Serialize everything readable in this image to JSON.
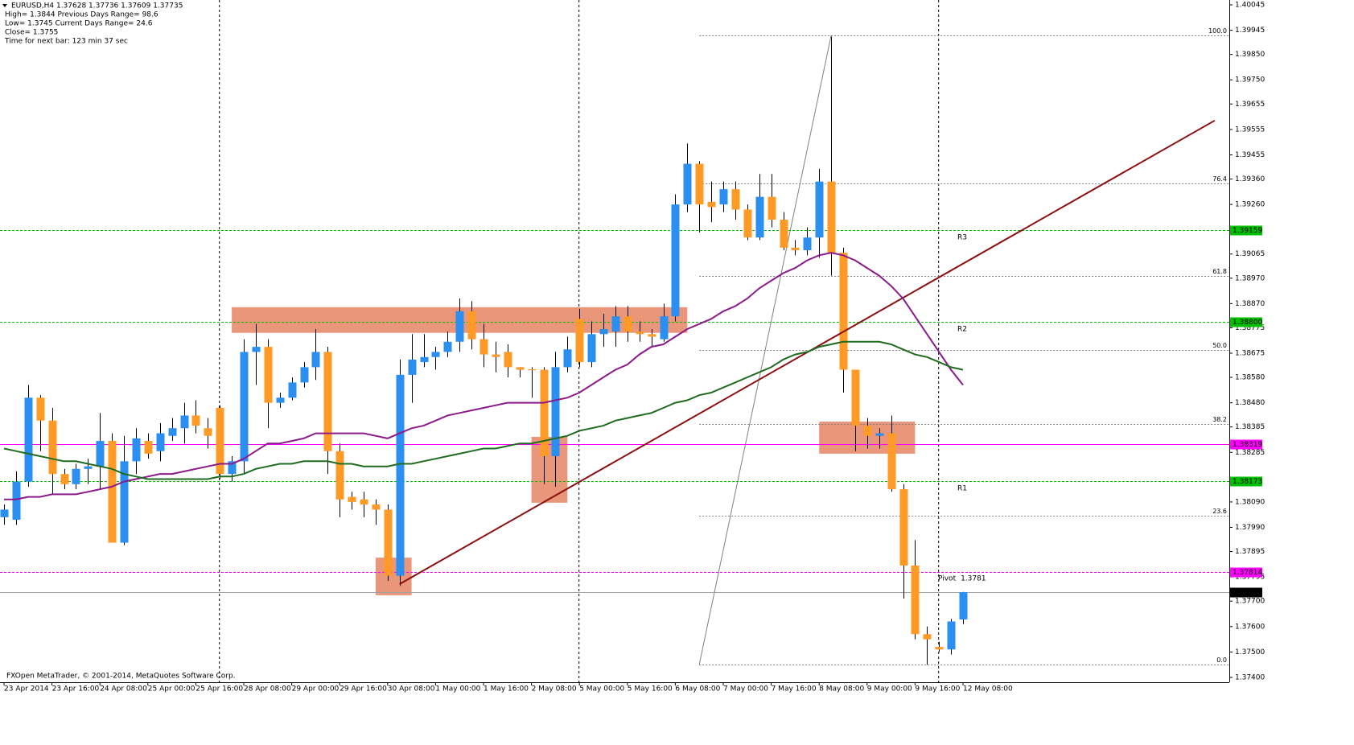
{
  "chart_data": {
    "type": "candlestick",
    "info_lines": [
      "EURUSD,H4  1.37628 1.37736 1.37609 1.37735",
      "High= 1.3844    Previous Days Range= 98.6",
      "Low= 1.3745    Current Days Range= 24.6",
      "Close= 1.3755",
      "Time for next bar: 123 min 37 sec"
    ],
    "footer": "FXOpen MetaTrader, © 2001-2014, MetaQuotes Software Corp.",
    "categories": [
      "23 Apr 2014",
      null,
      null,
      null,
      "23 Apr 16:00",
      null,
      null,
      null,
      "24 Apr 08:00",
      null,
      null,
      null,
      "25 Apr 00:00",
      null,
      null,
      null,
      "25 Apr 16:00",
      null,
      null,
      null,
      "28 Apr 08:00",
      null,
      null,
      null,
      "29 Apr 00:00",
      null,
      null,
      null,
      "29 Apr 16:00",
      null,
      null,
      null,
      "30 Apr 08:00",
      null,
      null,
      null,
      "1 May 00:00",
      null,
      null,
      null,
      "1 May 16:00",
      null,
      null,
      null,
      "2 May 08:00",
      null,
      null,
      null,
      "5 May 00:00",
      null,
      null,
      null,
      "5 May 16:00",
      null,
      null,
      null,
      "6 May 08:00",
      null,
      null,
      null,
      "7 May 00:00",
      null,
      null,
      null,
      "7 May 16:00",
      null,
      null,
      null,
      "8 May 08:00",
      null,
      null,
      null,
      "9 May 00:00",
      null,
      null,
      null,
      "9 May 16:00",
      null,
      null,
      null,
      "12 May 08:00"
    ],
    "open": [
      1.3803,
      1.3802,
      1.3817,
      1.385,
      1.3841,
      1.382,
      1.3816,
      1.3822,
      1.3823,
      1.3833,
      1.3793,
      1.3825,
      1.3833,
      1.3829,
      1.3835,
      1.3838,
      1.3843,
      1.3838,
      1.3846,
      1.382,
      1.3825,
      1.3868,
      1.387,
      1.3848,
      1.385,
      1.3856,
      1.3862,
      1.3868,
      1.3829,
      1.3811,
      1.381,
      1.3808,
      1.3806,
      1.378,
      1.3859,
      1.3864,
      1.3866,
      1.3868,
      1.3872,
      1.3884,
      1.3873,
      1.3867,
      1.3868,
      1.3862,
      1.38612,
      1.3861,
      1.3827,
      1.3862,
      1.3881,
      1.3864,
      1.3875,
      1.3876,
      1.3882,
      1.3876,
      1.3875,
      1.3873,
      1.3882,
      1.3926,
      1.3942,
      1.3927,
      1.3926,
      1.3932,
      1.3924,
      1.3913,
      1.3929,
      1.392,
      1.3909,
      1.3908,
      1.3913,
      1.3935,
      1.3907,
      1.3861,
      1.3839,
      1.3835,
      1.3836,
      1.3814,
      1.3784,
      1.3757,
      1.3752,
      1.3751,
      1.37628
    ],
    "high": [
      1.3808,
      1.3821,
      1.3855,
      1.3851,
      1.3846,
      1.3822,
      1.3824,
      1.3826,
      1.3844,
      1.3836,
      1.3835,
      1.3838,
      1.3836,
      1.384,
      1.3842,
      1.3848,
      1.3849,
      1.3842,
      1.3847,
      1.3827,
      1.3873,
      1.3879,
      1.3873,
      1.3852,
      1.3858,
      1.3864,
      1.3877,
      1.387,
      1.3832,
      1.3813,
      1.3813,
      1.381,
      1.3808,
      1.3865,
      1.3875,
      1.3875,
      1.387,
      1.3876,
      1.3889,
      1.3888,
      1.3879,
      1.3872,
      1.3871,
      1.3862,
      1.3862,
      1.3862,
      1.3868,
      1.3874,
      1.3885,
      1.388,
      1.3883,
      1.3886,
      1.3886,
      1.388,
      1.3877,
      1.3887,
      1.393,
      1.395,
      1.3943,
      1.3935,
      1.3935,
      1.3935,
      1.3926,
      1.3938,
      1.3938,
      1.3923,
      1.3912,
      1.3917,
      1.394,
      1.3992,
      1.3909,
      1.3861,
      1.3842,
      1.3838,
      1.3843,
      1.3816,
      1.3794,
      1.376,
      1.3754,
      1.3763,
      1.37736
    ],
    "low": [
      1.38,
      1.38,
      1.3815,
      1.3829,
      1.3812,
      1.3814,
      1.3814,
      1.3816,
      1.3814,
      1.3793,
      1.3792,
      1.382,
      1.3826,
      1.3825,
      1.3833,
      1.3832,
      1.3836,
      1.383,
      1.3818,
      1.3817,
      1.382,
      1.3855,
      1.3838,
      1.3846,
      1.3849,
      1.3854,
      1.3857,
      1.382,
      1.3803,
      1.3806,
      1.3803,
      1.38,
      1.3778,
      1.3776,
      1.3848,
      1.3862,
      1.3861,
      1.3866,
      1.3868,
      1.3869,
      1.3862,
      1.386,
      1.3858,
      1.3858,
      1.385,
      1.3816,
      1.3815,
      1.386,
      1.3862,
      1.3862,
      1.387,
      1.387,
      1.3872,
      1.3872,
      1.387,
      1.3872,
      1.388,
      1.3923,
      1.3915,
      1.3919,
      1.3923,
      1.392,
      1.3912,
      1.3912,
      1.3917,
      1.3908,
      1.3906,
      1.3906,
      1.3905,
      1.3898,
      1.3852,
      1.3829,
      1.383,
      1.383,
      1.3813,
      1.3771,
      1.3755,
      1.3745,
      1.375,
      1.3749,
      1.37609
    ],
    "close": [
      1.3806,
      1.3817,
      1.385,
      1.3841,
      1.382,
      1.3816,
      1.3822,
      1.3823,
      1.3833,
      1.3793,
      1.3825,
      1.3834,
      1.3828,
      1.3836,
      1.3838,
      1.3843,
      1.3839,
      1.3835,
      1.382,
      1.3825,
      1.3868,
      1.387,
      1.3848,
      1.385,
      1.3856,
      1.3862,
      1.3868,
      1.3829,
      1.381,
      1.3809,
      1.3808,
      1.3806,
      1.378,
      1.3859,
      1.3865,
      1.3866,
      1.3868,
      1.3872,
      1.3884,
      1.3873,
      1.3867,
      1.3866,
      1.3862,
      1.3861,
      1.38608,
      1.3827,
      1.3862,
      1.3869,
      1.3864,
      1.3875,
      1.3877,
      1.3882,
      1.3876,
      1.3875,
      1.3874,
      1.3882,
      1.3926,
      1.3942,
      1.3926,
      1.3925,
      1.3932,
      1.3924,
      1.3913,
      1.3929,
      1.392,
      1.3909,
      1.3908,
      1.3913,
      1.3935,
      1.3907,
      1.3861,
      1.3839,
      1.3835,
      1.3836,
      1.3814,
      1.3784,
      1.3757,
      1.3755,
      1.3751,
      1.3762,
      1.37735
    ],
    "up_color": "#2a8ff0",
    "down_color": "#ff9a26",
    "wick_color": "#000000",
    "overlays": [
      {
        "color": "#8b1a8b",
        "values": [
          1.381,
          1.381,
          1.3811,
          1.3811,
          1.3812,
          1.3812,
          1.3812,
          1.3813,
          1.3814,
          1.3815,
          1.3817,
          1.3818,
          1.3819,
          1.382,
          1.382,
          1.3821,
          1.3822,
          1.3823,
          1.3824,
          1.3824,
          1.3826,
          1.3829,
          1.3832,
          1.3832,
          1.3833,
          1.3834,
          1.3836,
          1.3836,
          1.3836,
          1.3836,
          1.3836,
          1.3835,
          1.3834,
          1.3836,
          1.3838,
          1.3839,
          1.3841,
          1.3843,
          1.3844,
          1.3845,
          1.3846,
          1.3847,
          1.3848,
          1.3848,
          1.3848,
          1.3848,
          1.3849,
          1.385,
          1.3852,
          1.3855,
          1.3858,
          1.3861,
          1.3863,
          1.3867,
          1.387,
          1.3871,
          1.3874,
          1.3877,
          1.3879,
          1.3881,
          1.3884,
          1.3886,
          1.3889,
          1.3893,
          1.3896,
          1.3899,
          1.3901,
          1.3904,
          1.3906,
          1.3907,
          1.3906,
          1.3904,
          1.3901,
          1.3898,
          1.3894,
          1.3889,
          1.3882,
          1.3875,
          1.3868,
          1.3861,
          1.3855
        ]
      },
      {
        "color": "#1f6b1f",
        "values": [
          1.383,
          1.3829,
          1.3828,
          1.3827,
          1.3826,
          1.3825,
          1.3825,
          1.3824,
          1.3823,
          1.3822,
          1.382,
          1.3819,
          1.3818,
          1.3818,
          1.3818,
          1.3818,
          1.3818,
          1.3818,
          1.3819,
          1.3819,
          1.382,
          1.3822,
          1.3823,
          1.3824,
          1.3824,
          1.3825,
          1.3825,
          1.3825,
          1.3824,
          1.3824,
          1.3823,
          1.3823,
          1.3823,
          1.3824,
          1.3824,
          1.3825,
          1.3826,
          1.3827,
          1.3828,
          1.3829,
          1.383,
          1.383,
          1.3831,
          1.3832,
          1.3832,
          1.3833,
          1.3834,
          1.3835,
          1.3837,
          1.3838,
          1.3839,
          1.3841,
          1.3842,
          1.3843,
          1.3844,
          1.3846,
          1.3848,
          1.3849,
          1.3851,
          1.3852,
          1.3854,
          1.3856,
          1.3858,
          1.386,
          1.3862,
          1.3865,
          1.3867,
          1.3868,
          1.387,
          1.3871,
          1.3872,
          1.3872,
          1.3872,
          1.3872,
          1.3871,
          1.3869,
          1.3867,
          1.3866,
          1.3864,
          1.3862,
          1.3861
        ]
      }
    ],
    "ylim": [
      1.37381,
      1.40064
    ],
    "yticks": [
      1.40045,
      1.39945,
      {
        "value": 1.3985,
        "label": "1.39850"
      },
      {
        "value": 1.3975,
        "label": "1.39750"
      },
      1.39655,
      1.39555,
      1.39455,
      {
        "value": 1.3936,
        "label": "1.39360"
      },
      {
        "value": 1.3926,
        "label": "1.39260"
      },
      1.39065,
      {
        "value": 1.3897,
        "label": "1.38970"
      },
      {
        "value": 1.3887,
        "label": "1.38870"
      },
      1.38775,
      1.38675,
      {
        "value": 1.3858,
        "label": "1.38580"
      },
      {
        "value": 1.3848,
        "label": "1.38480"
      },
      1.38385,
      1.38285,
      {
        "value": 1.3809,
        "label": "1.38090"
      },
      {
        "value": 1.3799,
        "label": "1.37990"
      },
      1.37895,
      1.37795,
      {
        "value": 1.377,
        "label": "1.37700"
      },
      {
        "value": 1.376,
        "label": "1.37600"
      },
      {
        "value": 1.375,
        "label": "1.37500"
      },
      {
        "value": 1.374,
        "label": "1.37400"
      }
    ],
    "levels": [
      {
        "value": 1.39159,
        "color": "#00c000",
        "name": "R3"
      },
      {
        "value": {
          "value": 1.388,
          "label": "1.38800"
        },
        "color": "#00c000",
        "name": "R2"
      },
      {
        "value": 1.38319,
        "color": "#ff00ff",
        "solid": true
      },
      {
        "value": 1.38173,
        "color": "#00c000",
        "name": "R1"
      },
      {
        "value": 1.37814,
        "color": "#ff00ff",
        "name": "Pivot",
        "value_label": "1.3781"
      },
      {
        "value": 1.37735,
        "color": "#000000",
        "solid": true,
        "current": true
      }
    ],
    "fibo": {
      "from": {
        "bar": 58,
        "price": 1.37451
      },
      "to": {
        "bar": 69,
        "price": 1.39925
      },
      "color": "#808080",
      "levels": [
        {
          "value": 100,
          "label": "100.0"
        },
        76.4,
        61.8,
        {
          "value": 50,
          "label": "50.0"
        },
        38.2,
        23.6,
        {
          "value": 0,
          "label": "0.0"
        }
      ]
    },
    "trendline": {
      "from": {
        "bar": 33,
        "price": 1.37767
      },
      "to": {
        "bar": 101,
        "price": 1.3959
      },
      "color": "#8b1010"
    },
    "rects": [
      {
        "from": 19,
        "to": 57,
        "top": 1.38856,
        "bottom": 1.38755
      },
      {
        "from": 31,
        "to": 34,
        "top": 1.37871,
        "bottom": 1.37723
      },
      {
        "from": 44,
        "to": 47,
        "top": 1.38346,
        "bottom": 1.38087
      },
      {
        "from": 68,
        "to": 76,
        "top": 1.38406,
        "bottom": 1.3828
      }
    ],
    "rect_color": "#e9967a",
    "separators": [
      18,
      48,
      78
    ]
  }
}
